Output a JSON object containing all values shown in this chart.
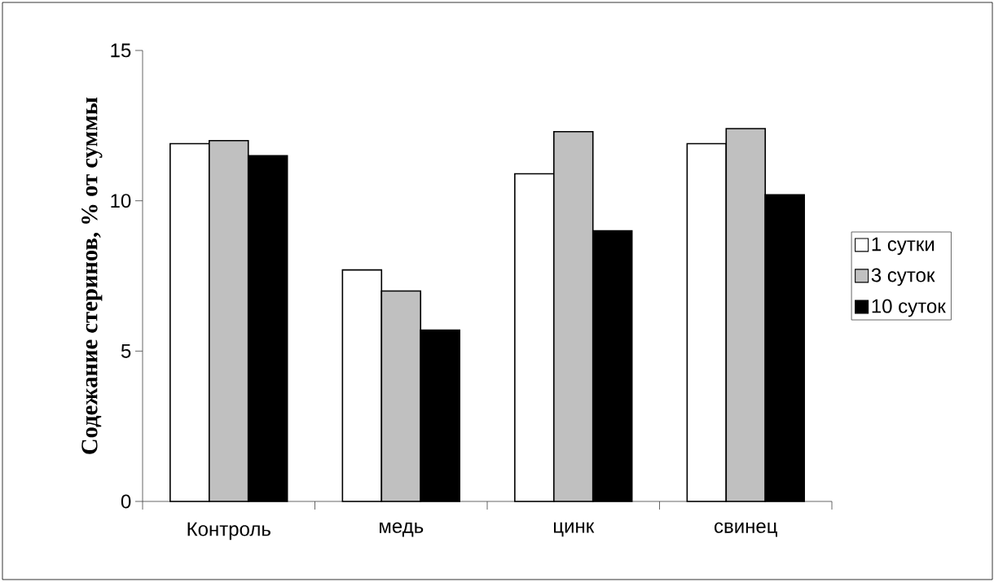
{
  "chart_data": {
    "type": "bar",
    "ylabel": "Содежание стеринов, % от суммы",
    "categories": [
      "Контроль",
      "медь",
      "цинк",
      "свинец"
    ],
    "series": [
      {
        "name": "1 сутки",
        "color": "#ffffff",
        "values": [
          11.9,
          7.7,
          10.9,
          11.9
        ]
      },
      {
        "name": "3 суток",
        "color": "#c0c0c0",
        "values": [
          12.0,
          7.0,
          12.3,
          12.4
        ]
      },
      {
        "name": "10 суток",
        "color": "#000000",
        "values": [
          11.5,
          5.7,
          9.0,
          10.2
        ]
      }
    ],
    "ylim": [
      0,
      15
    ],
    "yticks": [
      0,
      5,
      10,
      15
    ],
    "legend": "right",
    "grid": false
  }
}
